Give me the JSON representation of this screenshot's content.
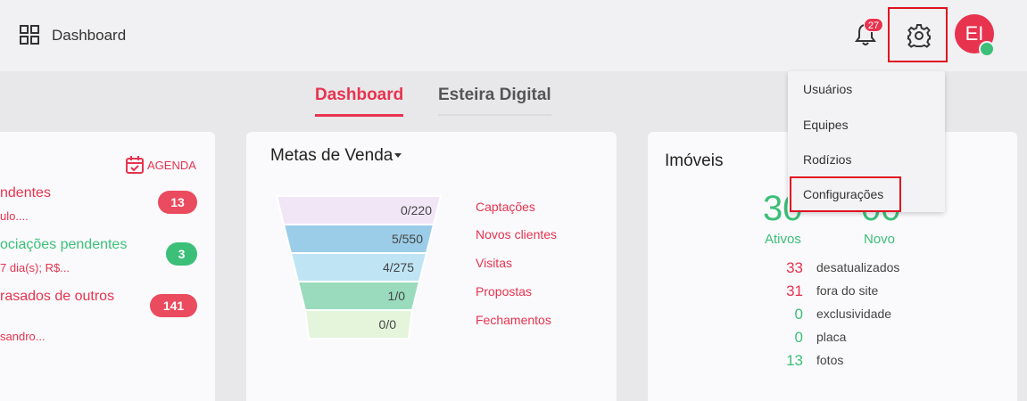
{
  "header": {
    "title": "Dashboard",
    "notifications_count": "27",
    "avatar_initials": "EI"
  },
  "tabs": [
    {
      "label": "Dashboard",
      "active": true
    },
    {
      "label": "Esteira Digital",
      "active": false
    }
  ],
  "left_card": {
    "agenda_label": "AGENDA",
    "items": [
      {
        "title": "ndentes",
        "subtitle": "ulo....",
        "count": "13"
      },
      {
        "title": "ociações pendentes",
        "subtitle": "7 dia(s); R$...",
        "count": "3"
      },
      {
        "title": "rasados de outros",
        "subtitle": "sandro...",
        "count": "141"
      }
    ]
  },
  "metas": {
    "title": "Metas de Venda",
    "stages": [
      {
        "value": "0/220",
        "label": "Captações",
        "color": "#f1e6f5"
      },
      {
        "value": "5/550",
        "label": "Novos clientes",
        "color": "#9bcde8"
      },
      {
        "value": "4/275",
        "label": "Visitas",
        "color": "#bfe5f5"
      },
      {
        "value": "1/0",
        "label": "Propostas",
        "color": "#9adbbe"
      },
      {
        "value": "0/0",
        "label": "Fechamentos",
        "color": "#e5f5dc"
      }
    ]
  },
  "imoveis": {
    "title": "Imóveis",
    "ativos_value": "30",
    "ativos_label": "Ativos",
    "novo_value": "00",
    "novo_label": "Novo",
    "stats": [
      {
        "value": "33",
        "label": "desatualizados",
        "color": "#e8334f"
      },
      {
        "value": "31",
        "label": "fora do site",
        "color": "#e8334f"
      },
      {
        "value": "0",
        "label": "exclusividade",
        "color": "#3cbf78"
      },
      {
        "value": "0",
        "label": "placa",
        "color": "#3cbf78"
      },
      {
        "value": "13",
        "label": "fotos",
        "color": "#3cbf78"
      }
    ]
  },
  "settings_menu": {
    "items": [
      {
        "label": "Usuários"
      },
      {
        "label": "Equipes"
      },
      {
        "label": "Rodízios"
      },
      {
        "label": "Configurações"
      }
    ]
  },
  "colors": {
    "accent": "#e8334f",
    "success": "#3cbf78"
  }
}
